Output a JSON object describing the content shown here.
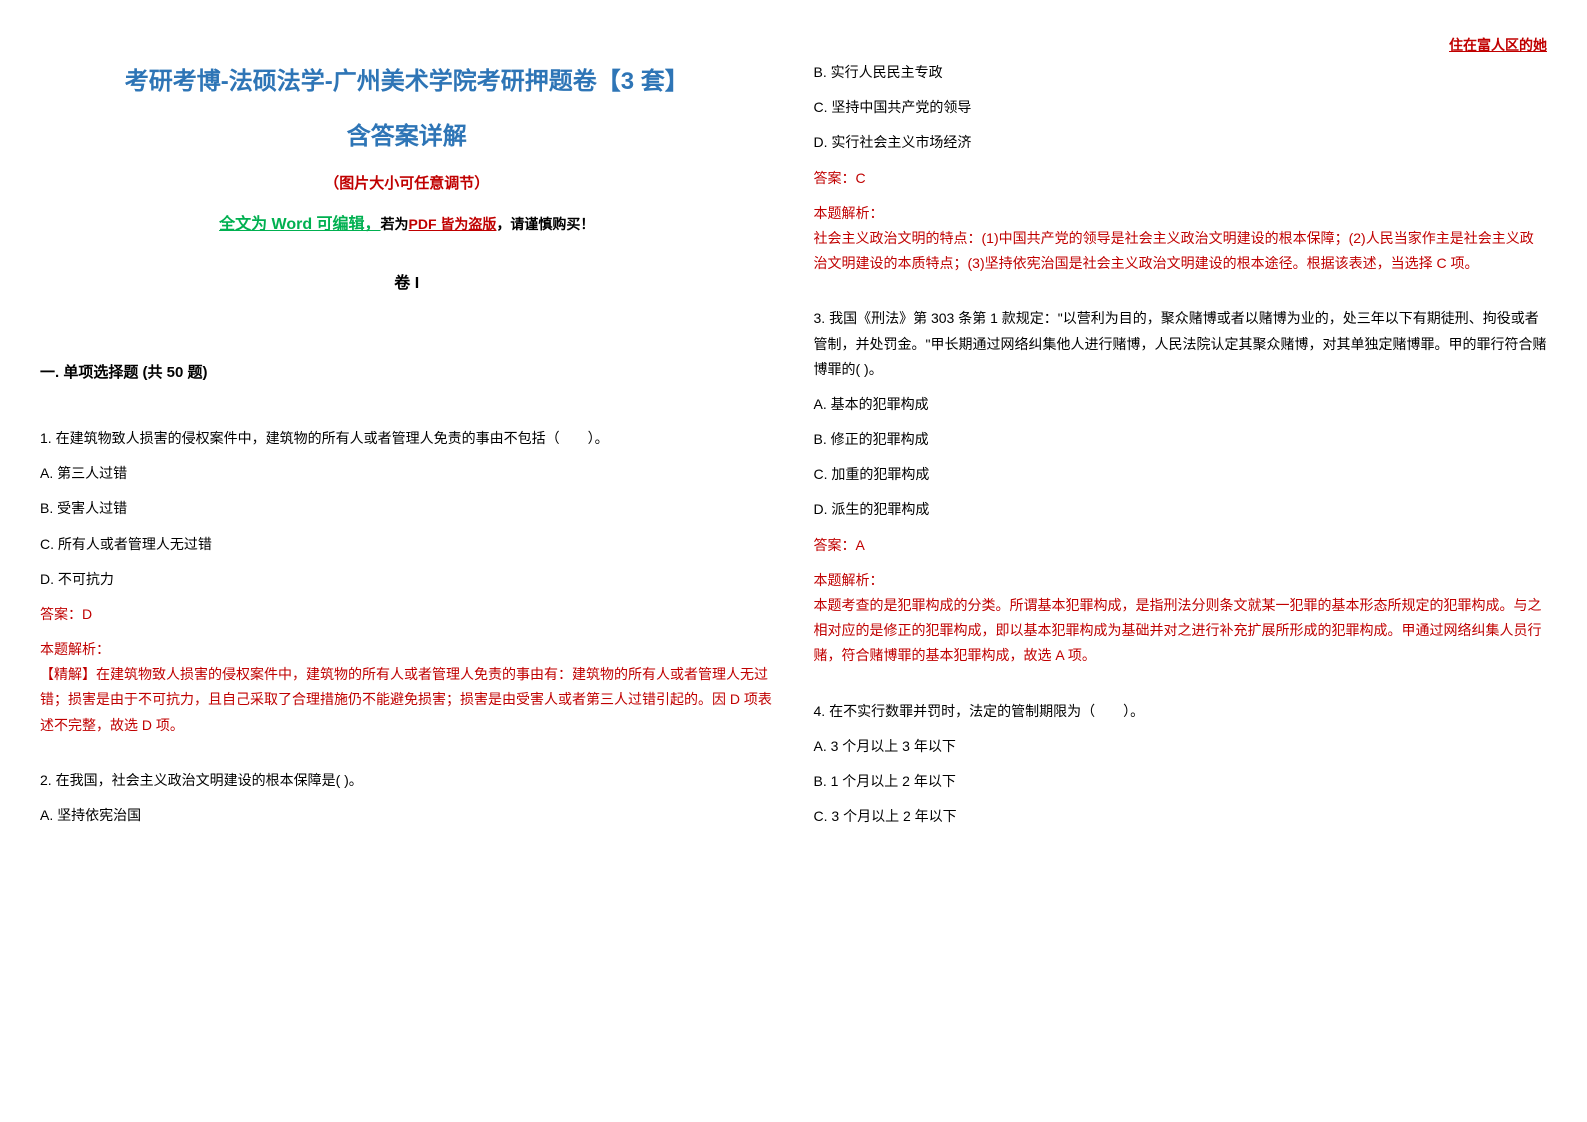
{
  "watermark": "住在富人区的她",
  "header": {
    "title_main": "考研考博-法硕法学-广州美术学院考研押题卷【3 套】",
    "title_sub": "含答案详解",
    "note_resize": "（图片大小可任意调节）",
    "note_word_p1": "全文为 Word 可编辑，",
    "note_word_p2": "若为",
    "note_word_p3": "PDF 皆为盗版",
    "note_word_p4": "，请谨慎购买！",
    "juan": "卷 I",
    "section": "一. 单项选择题 (共 50 题)"
  },
  "q1": {
    "text": "1. 在建筑物致人损害的侵权案件中，建筑物的所有人或者管理人免责的事由不包括（　　）。",
    "a": "A. 第三人过错",
    "b": "B. 受害人过错",
    "c": "C. 所有人或者管理人无过错",
    "d": "D. 不可抗力",
    "answer": "答案：D",
    "explain_label": "本题解析：",
    "explain": "【精解】在建筑物致人损害的侵权案件中，建筑物的所有人或者管理人免责的事由有：建筑物的所有人或者管理人无过错；损害是由于不可抗力，且自己采取了合理措施仍不能避免损害；损害是由受害人或者第三人过错引起的。因 D 项表述不完整，故选 D 项。"
  },
  "q2": {
    "text": "2. 在我国，社会主义政治文明建设的根本保障是( )。",
    "a": "A. 坚持依宪治国",
    "b": "B. 实行人民民主专政",
    "c": "C. 坚持中国共产党的领导",
    "d": "D. 实行社会主义市场经济",
    "answer": "答案：C",
    "explain_label": "本题解析：",
    "explain": "社会主义政治文明的特点：(1)中国共产党的领导是社会主义政治文明建设的根本保障；(2)人民当家作主是社会主义政治文明建设的本质特点；(3)坚持依宪治国是社会主义政治文明建设的根本途径。根据该表述，当选择 C 项。"
  },
  "q3": {
    "text": "3. 我国《刑法》第 303 条第 1 款规定：\"以营利为目的，聚众赌博或者以赌博为业的，处三年以下有期徒刑、拘役或者管制，并处罚金。\"甲长期通过网络纠集他人进行赌博，人民法院认定其聚众赌博，对其单独定赌博罪。甲的罪行符合赌博罪的( )。",
    "a": "A. 基本的犯罪构成",
    "b": "B. 修正的犯罪构成",
    "c": "C. 加重的犯罪构成",
    "d": "D. 派生的犯罪构成",
    "answer": "答案：A",
    "explain_label": "本题解析：",
    "explain": "本题考查的是犯罪构成的分类。所谓基本犯罪构成，是指刑法分则条文就某一犯罪的基本形态所规定的犯罪构成。与之相对应的是修正的犯罪构成，即以基本犯罪构成为基础并对之进行补充扩展所形成的犯罪构成。甲通过网络纠集人员行赌，符合赌博罪的基本犯罪构成，故选 A 项。"
  },
  "q4": {
    "text": "4. 在不实行数罪并罚时，法定的管制期限为（　　）。",
    "a": "A. 3 个月以上 3 年以下",
    "b": "B. 1 个月以上 2 年以下",
    "c": "C. 3 个月以上 2 年以下"
  },
  "colors": {
    "blue": "#2e75b6",
    "red": "#c00000",
    "green": "#00b050"
  }
}
